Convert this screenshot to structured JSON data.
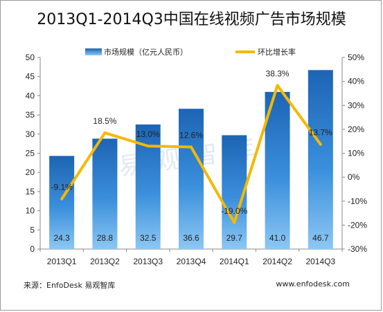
{
  "title": "2013Q1-2014Q3中国在线视频广告市场规模",
  "footer": {
    "source": "来源：EnfoDesk 易观智库",
    "website": "www.enfodesk.com"
  },
  "watermark": "易观智库",
  "chart_data": {
    "type": "bar+line",
    "title": "2013Q1-2014Q3中国在线视频广告市场规模",
    "categories": [
      "2013Q1",
      "2013Q2",
      "2013Q3",
      "2013Q4",
      "2014Q1",
      "2014Q2",
      "2014Q3"
    ],
    "series": [
      {
        "name": "市场规模（亿元人民币）",
        "type": "bar",
        "axis": "left",
        "color": "#1f6fc0",
        "values": [
          24.3,
          28.8,
          32.5,
          36.6,
          29.7,
          41.0,
          46.7
        ],
        "labels": [
          "24.3",
          "28.8",
          "32.5",
          "36.6",
          "29.7",
          "41.0",
          "46.7"
        ]
      },
      {
        "name": "环比增长率",
        "type": "line",
        "axis": "right",
        "color": "#f5b800",
        "values": [
          -9.1,
          18.5,
          13.0,
          12.6,
          -19.0,
          38.3,
          13.7
        ],
        "labels": [
          "-9.1%",
          "18.5%",
          "13.0%",
          "12.6%",
          "-19.0%",
          "38.3%",
          "13.7%"
        ]
      }
    ],
    "y_left": {
      "min": 0,
      "max": 50,
      "ticks": [
        "0",
        "5",
        "10",
        "15",
        "20",
        "25",
        "30",
        "35",
        "40",
        "45",
        "50"
      ]
    },
    "y_right": {
      "min": -30,
      "max": 50,
      "ticks": [
        "-30%",
        "-20%",
        "-10%",
        "0%",
        "10%",
        "20%",
        "30%",
        "40%",
        "50%"
      ]
    },
    "grid": false,
    "legend_position": "top-center"
  }
}
